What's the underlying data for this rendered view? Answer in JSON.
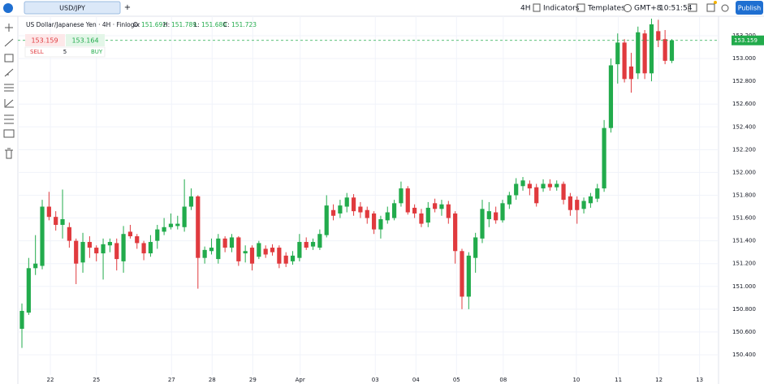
{
  "toolbar": {
    "tab": "USD/JPY",
    "add": "+",
    "interval": "4H",
    "indicators": "Indicators",
    "templates": "Templates",
    "timezone": "GMT+8",
    "clock": "10:51:54",
    "publish": "Publish"
  },
  "legend": {
    "title": "US Dollar/Japanese Yen · 4H · Finlogix",
    "items": [
      {
        "key": "O:",
        "value": "151.692"
      },
      {
        "key": "H:",
        "value": "151.789"
      },
      {
        "key": "L:",
        "value": "151.680"
      },
      {
        "key": "C:",
        "value": "151.723"
      }
    ]
  },
  "trade_panel": {
    "sell_price": "153.159",
    "buy_price": "153.164",
    "sell": "SELL",
    "quantity": "5",
    "buy": "BUY"
  },
  "chart_data": {
    "type": "candlestick",
    "up_color": "#22ab4c",
    "down_color": "#e03a3e",
    "grid": true,
    "x": [
      0,
      1,
      2,
      3,
      4,
      5,
      6,
      7,
      8,
      9,
      10,
      11,
      12,
      13,
      14,
      15,
      16,
      17,
      18,
      19,
      20,
      21,
      22,
      23,
      24,
      25,
      26,
      27,
      28,
      29,
      30,
      31,
      32,
      33,
      34,
      35,
      36,
      37,
      38,
      39,
      40,
      41,
      42,
      43,
      44,
      45,
      46,
      47,
      48,
      49,
      50,
      51,
      52,
      53,
      54,
      55,
      56,
      57,
      58,
      59,
      60,
      61,
      62,
      63,
      64,
      65,
      66,
      67,
      68,
      69,
      70,
      71,
      72,
      73,
      74,
      75,
      76,
      77,
      78,
      79,
      80,
      81,
      82,
      83,
      84,
      85,
      86,
      87,
      88,
      89,
      90,
      91,
      92,
      93,
      94,
      95,
      96
    ],
    "open": [
      150.628,
      150.77,
      151.16,
      151.18,
      151.7,
      151.61,
      151.54,
      151.52,
      151.4,
      151.21,
      151.39,
      151.34,
      151.29,
      151.36,
      151.38,
      151.22,
      151.48,
      151.44,
      151.38,
      151.29,
      151.4,
      151.48,
      151.52,
      151.53,
      151.52,
      151.7,
      151.79,
      151.25,
      151.31,
      151.24,
      151.42,
      151.34,
      151.43,
      151.29,
      151.34,
      151.26,
      151.33,
      151.34,
      151.34,
      151.27,
      151.22,
      151.25,
      151.39,
      151.35,
      151.34,
      151.45,
      151.67,
      151.64,
      151.7,
      151.78,
      151.7,
      151.67,
      151.64,
      151.5,
      151.58,
      151.6,
      151.73,
      151.86,
      151.69,
      151.64,
      151.56,
      151.73,
      151.68,
      151.72,
      151.64,
      151.31,
      150.91,
      151.25,
      151.42,
      151.59,
      151.65,
      151.58,
      151.72,
      151.8,
      151.88,
      151.9,
      151.87,
      151.86,
      151.9,
      151.87,
      151.9,
      151.79,
      151.76,
      151.68,
      151.73,
      151.77,
      151.86,
      152.39,
      152.95,
      153.14,
      152.93,
      152.87,
      153.22,
      152.87,
      153.24,
      153.17,
      152.98
    ],
    "high": [
      150.85,
      151.25,
      151.45,
      151.76,
      151.83,
      151.66,
      151.85,
      151.56,
      151.42,
      151.47,
      151.44,
      151.36,
      151.42,
      151.42,
      151.42,
      151.53,
      151.54,
      151.46,
      151.4,
      151.45,
      151.54,
      151.6,
      151.64,
      151.62,
      151.94,
      151.86,
      151.8,
      151.35,
      151.42,
      151.46,
      151.44,
      151.46,
      151.44,
      151.36,
      151.36,
      151.4,
      151.36,
      151.37,
      151.36,
      151.3,
      151.31,
      151.46,
      151.43,
      151.42,
      151.5,
      151.8,
      151.72,
      151.76,
      151.82,
      151.81,
      151.74,
      151.7,
      151.66,
      151.62,
      151.7,
      151.76,
      151.92,
      151.88,
      151.72,
      151.68,
      151.74,
      151.77,
      151.76,
      151.75,
      151.66,
      151.33,
      151.3,
      151.47,
      151.76,
      151.74,
      151.7,
      151.76,
      151.83,
      151.95,
      151.96,
      151.93,
      151.9,
      151.94,
      151.94,
      151.93,
      151.92,
      151.82,
      151.79,
      151.78,
      151.82,
      151.9,
      152.46,
      153.0,
      153.22,
      153.17,
      153.05,
      153.28,
      153.25,
      153.35,
      153.34,
      153.25,
      153.17
    ],
    "low": [
      150.46,
      150.75,
      151.1,
      151.15,
      151.58,
      151.49,
      151.42,
      151.34,
      151.02,
      151.12,
      151.25,
      151.22,
      151.06,
      151.3,
      151.14,
      151.12,
      151.42,
      151.33,
      151.23,
      151.26,
      151.33,
      151.45,
      151.5,
      151.5,
      151.48,
      151.67,
      150.98,
      151.2,
      151.28,
      151.2,
      151.3,
      151.3,
      151.18,
      151.21,
      151.14,
      151.24,
      151.25,
      151.27,
      151.16,
      151.17,
      151.19,
      151.22,
      151.32,
      151.32,
      151.32,
      151.43,
      151.58,
      151.6,
      151.65,
      151.62,
      151.6,
      151.55,
      151.46,
      151.42,
      151.55,
      151.58,
      151.7,
      151.63,
      151.6,
      151.52,
      151.52,
      151.65,
      151.62,
      151.55,
      151.2,
      150.8,
      150.8,
      151.12,
      151.38,
      151.52,
      151.55,
      151.56,
      151.68,
      151.76,
      151.84,
      151.8,
      151.7,
      151.83,
      151.84,
      151.84,
      151.72,
      151.62,
      151.55,
      151.64,
      151.69,
      151.74,
      151.83,
      152.35,
      152.78,
      152.79,
      152.7,
      152.82,
      152.82,
      152.8,
      153.1,
      152.95,
      152.96
    ],
    "close": [
      150.785,
      151.16,
      151.2,
      151.7,
      151.61,
      151.54,
      151.59,
      151.4,
      151.2,
      151.39,
      151.34,
      151.29,
      151.37,
      151.39,
      151.24,
      151.46,
      151.44,
      151.38,
      151.29,
      151.39,
      151.5,
      151.52,
      151.55,
      151.55,
      151.7,
      151.79,
      151.25,
      151.32,
      151.34,
      151.42,
      151.34,
      151.43,
      151.22,
      151.31,
      151.2,
      151.38,
      151.28,
      151.3,
      151.2,
      151.2,
      151.27,
      151.39,
      151.34,
      151.39,
      151.46,
      151.71,
      151.62,
      151.71,
      151.78,
      151.66,
      151.65,
      151.6,
      151.5,
      151.59,
      151.65,
      151.73,
      151.86,
      151.65,
      151.64,
      151.55,
      151.69,
      151.68,
      151.72,
      151.6,
      151.31,
      150.91,
      151.27,
      151.43,
      151.68,
      151.66,
      151.58,
      151.73,
      151.8,
      151.9,
      151.93,
      151.86,
      151.73,
      151.9,
      151.87,
      151.9,
      151.76,
      151.67,
      151.67,
      151.75,
      151.79,
      151.86,
      152.39,
      152.94,
      153.14,
      152.82,
      152.82,
      153.23,
      152.87,
      153.3,
      153.16,
      152.98,
      153.16
    ],
    "xlim": [
      -0.6,
      102.9
    ],
    "xticks": [
      {
        "value": 4.2,
        "label": "22"
      },
      {
        "value": 11.0,
        "label": "25"
      },
      {
        "value": 22.1,
        "label": "27"
      },
      {
        "value": 28.1,
        "label": "28"
      },
      {
        "value": 34.1,
        "label": "29"
      },
      {
        "value": 41.1,
        "label": "Apr"
      },
      {
        "value": 52.2,
        "label": "03"
      },
      {
        "value": 58.2,
        "label": "04"
      },
      {
        "value": 64.2,
        "label": "05"
      },
      {
        "value": 71.1,
        "label": "08"
      },
      {
        "value": 81.9,
        "label": "10"
      },
      {
        "value": 88.1,
        "label": "11"
      },
      {
        "value": 94.1,
        "label": "12"
      },
      {
        "value": 100.1,
        "label": "13"
      }
    ],
    "ylim": [
      150.236,
      153.371
    ],
    "yticks": [
      {
        "value": 150.4,
        "label": "150.400"
      },
      {
        "value": 150.6,
        "label": "150.600"
      },
      {
        "value": 150.8,
        "label": "150.800"
      },
      {
        "value": 151.0,
        "label": "151.000"
      },
      {
        "value": 151.2,
        "label": "151.200"
      },
      {
        "value": 151.4,
        "label": "151.400"
      },
      {
        "value": 151.6,
        "label": "151.600"
      },
      {
        "value": 151.8,
        "label": "151.800"
      },
      {
        "value": 152.0,
        "label": "152.000"
      },
      {
        "value": 152.2,
        "label": "152.200"
      },
      {
        "value": 152.4,
        "label": "152.400"
      },
      {
        "value": 152.6,
        "label": "152.600"
      },
      {
        "value": 152.8,
        "label": "152.800"
      },
      {
        "value": 153.0,
        "label": "153.000"
      },
      {
        "value": 153.2,
        "label": "153.200"
      }
    ],
    "price_line": {
      "value": 153.159,
      "label": "153.159"
    }
  }
}
